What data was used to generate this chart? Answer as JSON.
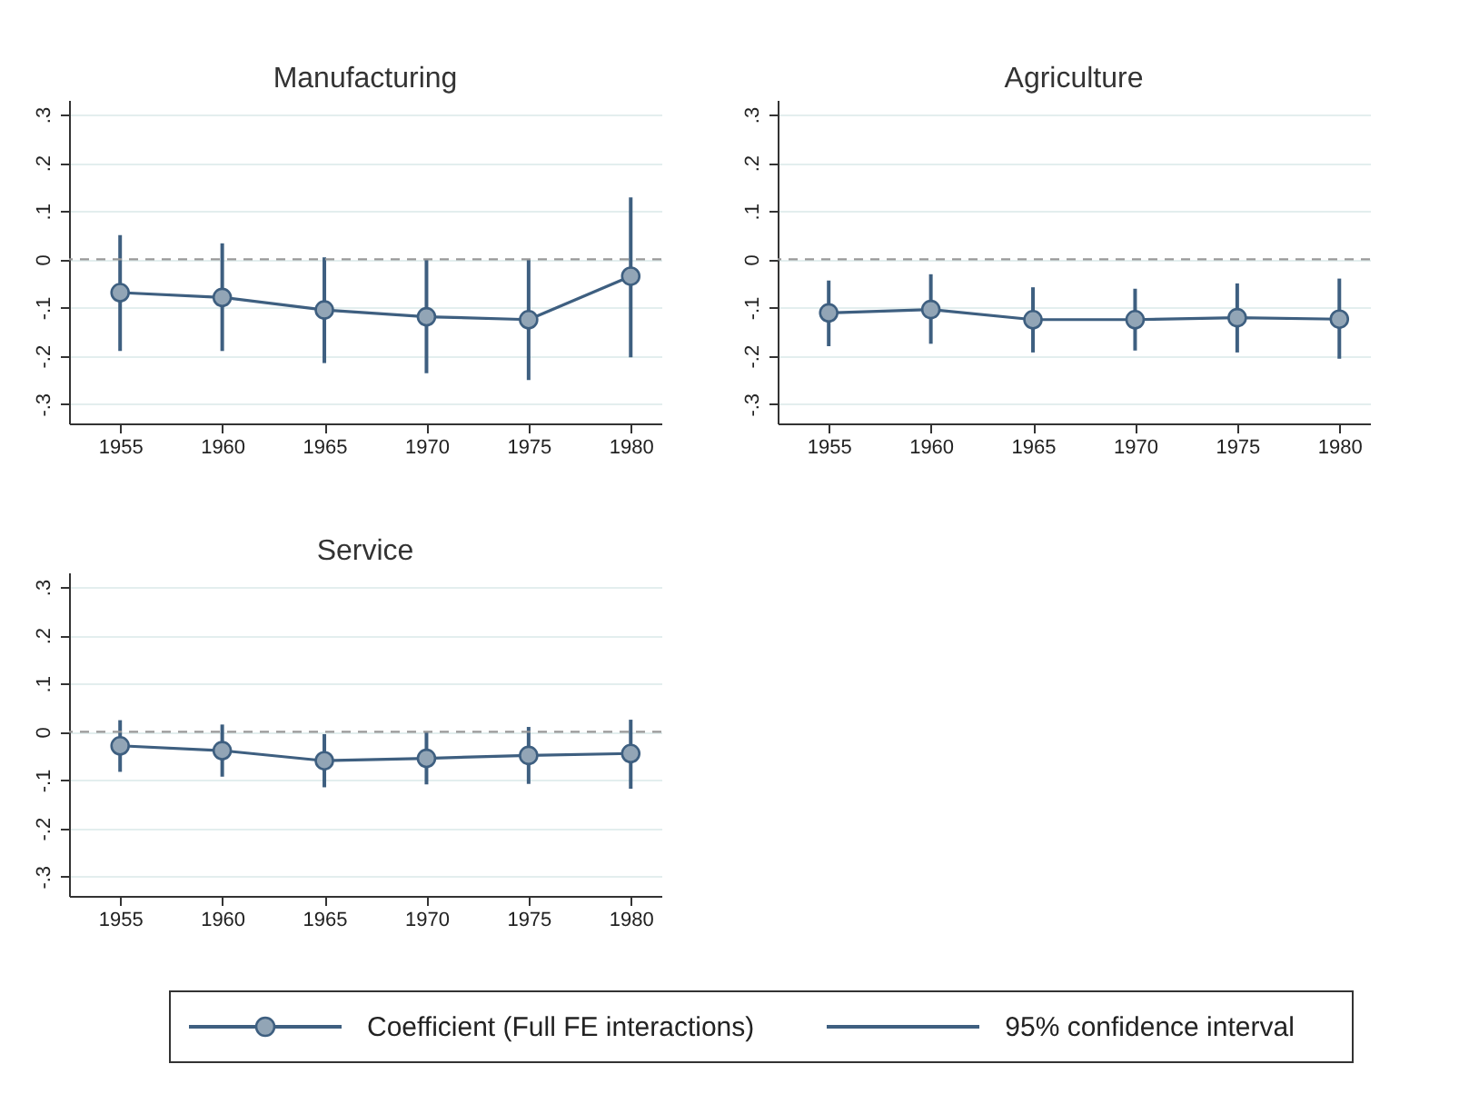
{
  "chart_data": [
    {
      "type": "line",
      "title": "Manufacturing",
      "x": [
        1955,
        1960,
        1965,
        1970,
        1975,
        1980
      ],
      "xlim": [
        1952.5,
        1981.5
      ],
      "xticks": [
        1955,
        1960,
        1965,
        1970,
        1975,
        1980
      ],
      "ylim": [
        -0.34,
        0.33
      ],
      "yticks": [
        {
          "value": -0.3,
          "label": "-.3"
        },
        {
          "value": -0.2,
          "label": "-.2"
        },
        {
          "value": -0.1,
          "label": "-.1"
        },
        {
          "value": 0,
          "label": "0"
        },
        {
          "value": 0.1,
          "label": ".1"
        },
        {
          "value": 0.2,
          "label": ".2"
        },
        {
          "value": 0.3,
          "label": ".3"
        }
      ],
      "grid": "y",
      "marker": "circle",
      "line_style": "solid",
      "legend": false,
      "series": [
        {
          "color": "#3e5f80",
          "values": [
            -0.069,
            -0.079,
            -0.105,
            -0.119,
            -0.125,
            -0.035
          ],
          "errors": [
            [
              -0.19,
              0.05
            ],
            [
              -0.19,
              0.033
            ],
            [
              -0.215,
              0.004
            ],
            [
              -0.236,
              0
            ],
            [
              -0.25,
              0
            ],
            [
              -0.203,
              0.128
            ]
          ]
        }
      ],
      "ref_lines": [
        {
          "axis": "y",
          "value": 0,
          "label": null,
          "color": "#999999",
          "line_style": "dashed"
        }
      ]
    },
    {
      "type": "line",
      "title": "Agriculture",
      "x": [
        1955,
        1960,
        1965,
        1970,
        1975,
        1980
      ],
      "xlim": [
        1952.5,
        1981.5
      ],
      "xticks": [
        1955,
        1960,
        1965,
        1970,
        1975,
        1980
      ],
      "ylim": [
        -0.34,
        0.33
      ],
      "yticks": [
        {
          "value": -0.3,
          "label": "-.3"
        },
        {
          "value": -0.2,
          "label": "-.2"
        },
        {
          "value": -0.1,
          "label": "-.1"
        },
        {
          "value": 0,
          "label": "0"
        },
        {
          "value": 0.1,
          "label": ".1"
        },
        {
          "value": 0.2,
          "label": ".2"
        },
        {
          "value": 0.3,
          "label": ".3"
        }
      ],
      "grid": "y",
      "marker": "circle",
      "line_style": "solid",
      "legend": false,
      "series": [
        {
          "color": "#3e5f80",
          "values": [
            -0.111,
            -0.104,
            -0.125,
            -0.125,
            -0.121,
            -0.124
          ],
          "errors": [
            [
              -0.18,
              -0.044
            ],
            [
              -0.175,
              -0.031
            ],
            [
              -0.193,
              -0.058
            ],
            [
              -0.189,
              -0.061
            ],
            [
              -0.193,
              -0.05
            ],
            [
              -0.206,
              -0.04
            ]
          ]
        }
      ],
      "ref_lines": [
        {
          "axis": "y",
          "value": 0,
          "label": null,
          "color": "#999999",
          "line_style": "dashed"
        }
      ]
    },
    {
      "type": "line",
      "title": "Service",
      "x": [
        1955,
        1960,
        1965,
        1970,
        1975,
        1980
      ],
      "xlim": [
        1952.5,
        1981.5
      ],
      "xticks": [
        1955,
        1960,
        1965,
        1970,
        1975,
        1980
      ],
      "ylim": [
        -0.34,
        0.33
      ],
      "yticks": [
        {
          "value": -0.3,
          "label": "-.3"
        },
        {
          "value": -0.2,
          "label": "-.2"
        },
        {
          "value": -0.1,
          "label": "-.1"
        },
        {
          "value": 0,
          "label": "0"
        },
        {
          "value": 0.1,
          "label": ".1"
        },
        {
          "value": 0.2,
          "label": ".2"
        },
        {
          "value": 0.3,
          "label": ".3"
        }
      ],
      "grid": "y",
      "marker": "circle",
      "line_style": "solid",
      "legend": "bottom",
      "series": [
        {
          "name": "Coefficient (Full FE interactions)",
          "color": "#3e5f80",
          "values": [
            -0.029,
            -0.039,
            -0.06,
            -0.055,
            -0.049,
            -0.045
          ],
          "errors": [
            [
              -0.083,
              0.024
            ],
            [
              -0.093,
              0.015
            ],
            [
              -0.115,
              -0.005
            ],
            [
              -0.109,
              0
            ],
            [
              -0.108,
              0.01
            ],
            [
              -0.118,
              0.025
            ]
          ]
        }
      ],
      "ref_lines": [
        {
          "axis": "y",
          "value": 0,
          "label": null,
          "color": "#999999",
          "line_style": "dashed"
        }
      ],
      "annotations": [
        "95% confidence interval"
      ]
    }
  ]
}
